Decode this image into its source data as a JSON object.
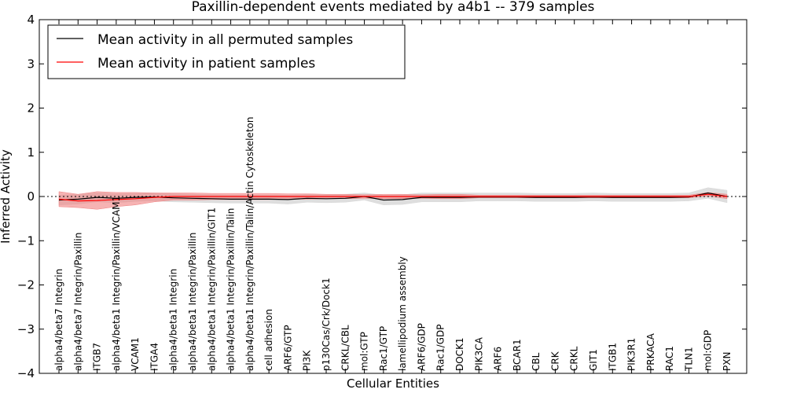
{
  "chart_data": {
    "type": "line",
    "title": "Paxillin-dependent events mediated by a4b1 -- 379 samples",
    "xlabel": "Cellular Entities",
    "ylabel": "Inferred Activity",
    "ylim": [
      -4,
      4
    ],
    "yticks": [
      -4,
      -3,
      -2,
      -1,
      0,
      1,
      2,
      3,
      4
    ],
    "ytick_labels": [
      "−4",
      "−3",
      "−2",
      "−1",
      "0",
      "1",
      "2",
      "3",
      "4"
    ],
    "legend_position": "top-left",
    "reference_line": 0,
    "categories": [
      "alpha4/beta7 Integrin",
      "alpha4/beta7 Integrin/Paxillin",
      "ITGB7",
      "alpha4/beta1 Integrin/Paxillin/VCAM1",
      "VCAM1",
      "ITGA4",
      "alpha4/beta1 Integrin",
      "alpha4/beta1 Integrin/Paxillin",
      "alpha4/beta1 Integrin/Paxillin/GIT1",
      "alpha4/beta1 Integrin/Paxillin/Talin",
      "alpha4/beta1 Integrin/Paxillin/Talin/Actin Cytoskeleton",
      "cell adhesion",
      "ARF6/GTP",
      "PI3K",
      "p130Cas/Crk/Dock1",
      "CRKL/CBL",
      "mol:GTP",
      "Rac1/GTP",
      "lamellipodium assembly",
      "ARF6/GDP",
      "Rac1/GDP",
      "DOCK1",
      "PIK3CA",
      "ARF6",
      "BCAR1",
      "CBL",
      "CRK",
      "CRKL",
      "GIT1",
      "ITGB1",
      "PIK3R1",
      "PRKACA",
      "RAC1",
      "TLN1",
      "mol:GDP",
      "PXN"
    ],
    "series": [
      {
        "name": "Mean activity in all permuted samples",
        "color": "#000000",
        "band_color": "#d8d8d8",
        "values": [
          -0.08,
          -0.06,
          -0.02,
          -0.04,
          -0.02,
          -0.01,
          -0.03,
          -0.04,
          -0.05,
          -0.06,
          -0.06,
          -0.06,
          -0.07,
          -0.04,
          -0.05,
          -0.04,
          0.0,
          -0.08,
          -0.07,
          -0.02,
          -0.02,
          -0.02,
          -0.01,
          -0.01,
          -0.01,
          -0.02,
          -0.02,
          -0.02,
          -0.01,
          -0.02,
          -0.02,
          -0.02,
          -0.02,
          -0.01,
          0.08,
          0.0
        ],
        "band_half_width": [
          0.11,
          0.11,
          0.1,
          0.1,
          0.09,
          0.09,
          0.09,
          0.09,
          0.09,
          0.09,
          0.09,
          0.09,
          0.1,
          0.09,
          0.09,
          0.09,
          0.08,
          0.11,
          0.11,
          0.1,
          0.1,
          0.1,
          0.09,
          0.09,
          0.09,
          0.09,
          0.09,
          0.09,
          0.09,
          0.09,
          0.09,
          0.09,
          0.09,
          0.09,
          0.12,
          0.14
        ]
      },
      {
        "name": "Mean activity in patient samples",
        "color": "#ff0000",
        "band_color": "#f08080",
        "values": [
          -0.06,
          -0.1,
          -0.09,
          -0.07,
          -0.05,
          -0.02,
          0.0,
          0.0,
          0.0,
          0.0,
          0.0,
          0.0,
          0.0,
          0.0,
          0.0,
          0.0,
          0.0,
          0.0,
          0.0,
          0.0,
          0.0,
          0.0,
          0.0,
          0.0,
          0.0,
          0.0,
          0.0,
          0.0,
          0.0,
          0.0,
          0.0,
          0.0,
          0.0,
          0.0,
          0.05,
          0.0
        ],
        "band_half_width": [
          0.17,
          0.15,
          0.2,
          0.16,
          0.14,
          0.1,
          0.08,
          0.08,
          0.07,
          0.07,
          0.07,
          0.07,
          0.06,
          0.06,
          0.05,
          0.05,
          0.04,
          0.05,
          0.05,
          0.04,
          0.05,
          0.05,
          0.03,
          0.03,
          0.03,
          0.03,
          0.03,
          0.03,
          0.03,
          0.03,
          0.03,
          0.03,
          0.03,
          0.03,
          0.04,
          0.05
        ]
      }
    ]
  }
}
